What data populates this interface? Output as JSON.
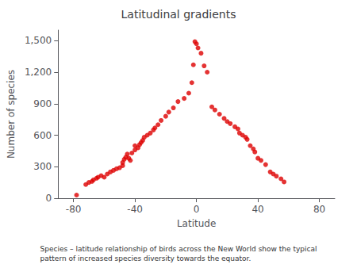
{
  "chart_data": {
    "type": "scatter",
    "title": "Latitudinal gradients",
    "xlabel": "Latitude",
    "ylabel": "Number of species",
    "caption": "Species – latitude relationship of birds across the New World show the typical\npattern of increased species diversity towards the equator.",
    "color": "#dd0000",
    "xlim": [
      -90,
      90
    ],
    "ylim": [
      0,
      1600
    ],
    "xticks": [
      -80,
      -40,
      0,
      40,
      80
    ],
    "yticks": [
      0,
      300,
      600,
      900,
      1200,
      1500
    ],
    "grid": false,
    "x": [
      -78,
      -72,
      -70,
      -68,
      -67,
      -65,
      -64,
      -62,
      -60,
      -58,
      -56,
      -54,
      -52,
      -50,
      -48,
      -48,
      -47,
      -46,
      -45,
      -44,
      -43,
      -42,
      -40,
      -40,
      -38,
      -37,
      -36,
      -35,
      -34,
      -32,
      -30,
      -28,
      -27,
      -25,
      -23,
      -20,
      -18,
      -15,
      -12,
      -8,
      -5,
      -3,
      -2,
      -1,
      0,
      1,
      3,
      5,
      7,
      10,
      12,
      15,
      18,
      20,
      22,
      25,
      27,
      28,
      30,
      32,
      33,
      35,
      37,
      38,
      40,
      42,
      45,
      48,
      50,
      52,
      55,
      57
    ],
    "values": [
      30,
      130,
      150,
      160,
      175,
      190,
      200,
      215,
      200,
      230,
      250,
      265,
      280,
      290,
      310,
      340,
      370,
      390,
      420,
      380,
      360,
      430,
      460,
      500,
      480,
      510,
      530,
      550,
      580,
      600,
      620,
      650,
      670,
      700,
      740,
      780,
      820,
      860,
      920,
      950,
      1000,
      1100,
      1270,
      1490,
      1470,
      1430,
      1380,
      1260,
      1200,
      870,
      840,
      800,
      760,
      730,
      710,
      680,
      660,
      620,
      600,
      580,
      560,
      500,
      470,
      440,
      380,
      360,
      320,
      250,
      230,
      210,
      185,
      155
    ]
  }
}
